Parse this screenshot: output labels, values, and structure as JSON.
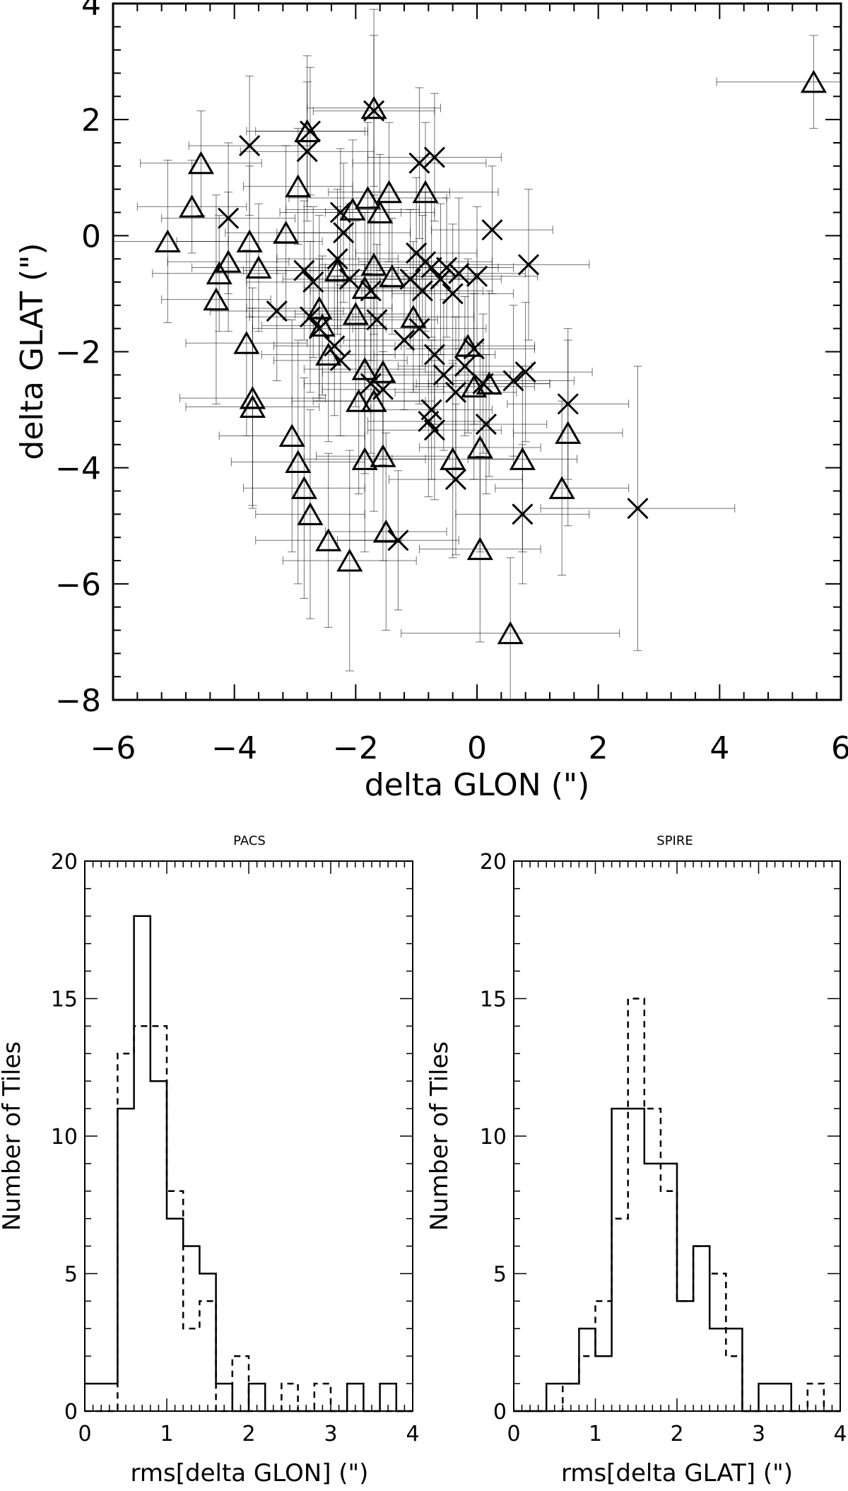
{
  "chart_data": [
    {
      "id": "scatter",
      "type": "scatter",
      "title": "",
      "xlabel": "delta GLON (\")",
      "ylabel": "delta GLAT (\")",
      "xlim": [
        -6,
        6
      ],
      "ylim": [
        -8,
        4
      ],
      "xticks": [
        "-6",
        "-4",
        "-2",
        "0",
        "2",
        "4",
        "6"
      ],
      "yticks": [
        "-8",
        "-6",
        "-4",
        "-2",
        "0",
        "2",
        "4"
      ],
      "series": [
        {
          "name": "triangle",
          "marker": "triangle",
          "points": [
            {
              "x": 5.55,
              "y": 2.65,
              "ex": 1.6,
              "ey": 0.8
            },
            {
              "x": -4.55,
              "y": 1.25,
              "ex": 1.0,
              "ey": 0.9
            },
            {
              "x": -4.7,
              "y": 0.5,
              "ex": 0.9,
              "ey": 0.8
            },
            {
              "x": -5.1,
              "y": -0.1,
              "ex": 1.0,
              "ey": 1.4
            },
            {
              "x": -4.25,
              "y": -0.65,
              "ex": 1.1,
              "ey": 1.0
            },
            {
              "x": -4.1,
              "y": -0.45,
              "ex": 1.0,
              "ey": 1.2
            },
            {
              "x": -4.3,
              "y": -1.1,
              "ex": 0.9,
              "ey": 1.8
            },
            {
              "x": -3.75,
              "y": -0.1,
              "ex": 1.2,
              "ey": 1.3
            },
            {
              "x": -3.6,
              "y": -0.55,
              "ex": 1.1,
              "ey": 1.1
            },
            {
              "x": -3.8,
              "y": -1.85,
              "ex": 1.0,
              "ey": 1.6
            },
            {
              "x": -3.7,
              "y": -2.8,
              "ex": 1.2,
              "ey": 1.9
            },
            {
              "x": -3.7,
              "y": -2.95,
              "ex": 1.1,
              "ey": 1.7
            },
            {
              "x": -3.15,
              "y": 0.05,
              "ex": 1.0,
              "ey": 1.5
            },
            {
              "x": -2.95,
              "y": 0.85,
              "ex": 0.9,
              "ey": 1.0
            },
            {
              "x": -3.05,
              "y": -3.45,
              "ex": 1.2,
              "ey": 2.0
            },
            {
              "x": -2.95,
              "y": -3.9,
              "ex": 1.1,
              "ey": 2.1
            },
            {
              "x": -2.85,
              "y": -4.35,
              "ex": 1.0,
              "ey": 1.9
            },
            {
              "x": -2.75,
              "y": -4.8,
              "ex": 0.9,
              "ey": 1.8
            },
            {
              "x": -2.45,
              "y": -5.25,
              "ex": 1.2,
              "ey": 1.5
            },
            {
              "x": -2.1,
              "y": -5.6,
              "ex": 1.1,
              "ey": 1.9
            },
            {
              "x": -2.8,
              "y": 1.8,
              "ex": 1.0,
              "ey": 1.3
            },
            {
              "x": -1.7,
              "y": 2.2,
              "ex": 1.1,
              "ey": 1.7
            },
            {
              "x": -1.8,
              "y": 0.65,
              "ex": 1.3,
              "ey": 1.3
            },
            {
              "x": -1.45,
              "y": 0.75,
              "ex": 1.0,
              "ey": 1.2
            },
            {
              "x": -1.6,
              "y": 0.4,
              "ex": 0.9,
              "ey": 1.0
            },
            {
              "x": -2.05,
              "y": 0.45,
              "ex": 1.1,
              "ey": 1.2
            },
            {
              "x": -0.85,
              "y": 0.75,
              "ex": 1.2,
              "ey": 1.2
            },
            {
              "x": -2.3,
              "y": -0.6,
              "ex": 1.0,
              "ey": 1.1
            },
            {
              "x": -1.7,
              "y": -0.5,
              "ex": 0.9,
              "ey": 1.2
            },
            {
              "x": -1.4,
              "y": -0.7,
              "ex": 1.1,
              "ey": 1.0
            },
            {
              "x": -1.85,
              "y": -0.9,
              "ex": 1.0,
              "ey": 1.3
            },
            {
              "x": -2.6,
              "y": -1.25,
              "ex": 1.2,
              "ey": 1.6
            },
            {
              "x": -2.55,
              "y": -1.55,
              "ex": 1.0,
              "ey": 1.2
            },
            {
              "x": -2.0,
              "y": -1.35,
              "ex": 1.0,
              "ey": 1.6
            },
            {
              "x": -1.05,
              "y": -1.4,
              "ex": 1.0,
              "ey": 1.3
            },
            {
              "x": -2.45,
              "y": -2.05,
              "ex": 1.1,
              "ey": 1.5
            },
            {
              "x": -1.85,
              "y": -2.3,
              "ex": 1.0,
              "ey": 1.8
            },
            {
              "x": -1.55,
              "y": -2.35,
              "ex": 1.0,
              "ey": 1.5
            },
            {
              "x": -1.95,
              "y": -2.85,
              "ex": 1.1,
              "ey": 1.6
            },
            {
              "x": -1.7,
              "y": -2.85,
              "ex": 1.0,
              "ey": 1.9
            },
            {
              "x": -1.85,
              "y": -3.85,
              "ex": 1.0,
              "ey": 1.6
            },
            {
              "x": -1.55,
              "y": -3.8,
              "ex": 1.1,
              "ey": 1.8
            },
            {
              "x": -1.5,
              "y": -5.1,
              "ex": 1.0,
              "ey": 1.7
            },
            {
              "x": -0.15,
              "y": -1.9,
              "ex": 1.1,
              "ey": 1.5
            },
            {
              "x": -0.05,
              "y": -2.6,
              "ex": 1.0,
              "ey": 1.6
            },
            {
              "x": 0.2,
              "y": -2.55,
              "ex": 1.0,
              "ey": 1.6
            },
            {
              "x": -0.4,
              "y": -3.85,
              "ex": 1.0,
              "ey": 1.7
            },
            {
              "x": 0.05,
              "y": -3.65,
              "ex": 1.0,
              "ey": 1.8
            },
            {
              "x": 0.75,
              "y": -3.85,
              "ex": 0.9,
              "ey": 1.6
            },
            {
              "x": 1.5,
              "y": -3.4,
              "ex": 0.9,
              "ey": 1.6
            },
            {
              "x": 1.4,
              "y": -4.35,
              "ex": 1.1,
              "ey": 1.5
            },
            {
              "x": 0.05,
              "y": -5.4,
              "ex": 1.0,
              "ey": 1.6
            },
            {
              "x": 0.55,
              "y": -6.85,
              "ex": 1.8,
              "ey": 1.3
            }
          ]
        },
        {
          "name": "cross",
          "marker": "cross",
          "points": [
            {
              "x": -3.75,
              "y": 1.55,
              "ex": 1.0,
              "ey": 1.2
            },
            {
              "x": -2.8,
              "y": 1.45,
              "ex": 1.1,
              "ey": 1.2
            },
            {
              "x": -2.75,
              "y": 1.8,
              "ex": 0.9,
              "ey": 1.1
            },
            {
              "x": -1.7,
              "y": 2.15,
              "ex": 1.0,
              "ey": 1.3
            },
            {
              "x": -4.1,
              "y": 0.3,
              "ex": 1.1,
              "ey": 1.3
            },
            {
              "x": -2.25,
              "y": 0.4,
              "ex": 1.0,
              "ey": 1.1
            },
            {
              "x": -2.2,
              "y": 0.05,
              "ex": 1.1,
              "ey": 1.2
            },
            {
              "x": -0.95,
              "y": 1.25,
              "ex": 1.1,
              "ey": 1.3
            },
            {
              "x": -0.7,
              "y": 1.35,
              "ex": 1.1,
              "ey": 1.1
            },
            {
              "x": 0.25,
              "y": 0.1,
              "ex": 1.0,
              "ey": 1.1
            },
            {
              "x": 0.85,
              "y": -0.5,
              "ex": 1.0,
              "ey": 1.3
            },
            {
              "x": -3.3,
              "y": -1.3,
              "ex": 1.1,
              "ey": 1.2
            },
            {
              "x": -2.85,
              "y": -0.6,
              "ex": 1.0,
              "ey": 1.2
            },
            {
              "x": -2.7,
              "y": -0.8,
              "ex": 1.1,
              "ey": 1.3
            },
            {
              "x": -2.75,
              "y": -1.4,
              "ex": 1.0,
              "ey": 1.3
            },
            {
              "x": -2.6,
              "y": -1.6,
              "ex": 1.1,
              "ey": 1.2
            },
            {
              "x": -2.3,
              "y": -0.4,
              "ex": 1.0,
              "ey": 1.2
            },
            {
              "x": -2.1,
              "y": -0.75,
              "ex": 1.1,
              "ey": 1.3
            },
            {
              "x": -2.35,
              "y": -1.9,
              "ex": 1.0,
              "ey": 1.2
            },
            {
              "x": -2.25,
              "y": -2.15,
              "ex": 1.1,
              "ey": 1.3
            },
            {
              "x": -1.75,
              "y": -0.95,
              "ex": 1.0,
              "ey": 1.2
            },
            {
              "x": -1.65,
              "y": -1.45,
              "ex": 1.0,
              "ey": 1.3
            },
            {
              "x": -1.75,
              "y": -2.55,
              "ex": 1.1,
              "ey": 1.2
            },
            {
              "x": -1.55,
              "y": -2.65,
              "ex": 1.0,
              "ey": 1.3
            },
            {
              "x": -1.1,
              "y": -0.75,
              "ex": 1.1,
              "ey": 1.2
            },
            {
              "x": -1.0,
              "y": -0.3,
              "ex": 1.0,
              "ey": 1.3
            },
            {
              "x": -0.85,
              "y": -0.45,
              "ex": 1.1,
              "ey": 1.2
            },
            {
              "x": -0.9,
              "y": -0.95,
              "ex": 1.0,
              "ey": 1.3
            },
            {
              "x": -0.75,
              "y": -0.55,
              "ex": 1.1,
              "ey": 1.2
            },
            {
              "x": -0.6,
              "y": -0.75,
              "ex": 1.0,
              "ey": 1.3
            },
            {
              "x": -0.5,
              "y": -0.55,
              "ex": 1.1,
              "ey": 1.2
            },
            {
              "x": -0.4,
              "y": -1.0,
              "ex": 1.0,
              "ey": 1.2
            },
            {
              "x": -0.3,
              "y": -0.65,
              "ex": 1.1,
              "ey": 1.3
            },
            {
              "x": -1.2,
              "y": -1.8,
              "ex": 1.0,
              "ey": 1.2
            },
            {
              "x": -0.95,
              "y": -1.6,
              "ex": 1.1,
              "ey": 1.3
            },
            {
              "x": -0.7,
              "y": -2.05,
              "ex": 1.0,
              "ey": 1.2
            },
            {
              "x": -0.55,
              "y": -2.4,
              "ex": 1.1,
              "ey": 1.3
            },
            {
              "x": -0.75,
              "y": -3.0,
              "ex": 1.0,
              "ey": 1.2
            },
            {
              "x": -0.8,
              "y": -3.2,
              "ex": 1.0,
              "ey": 1.3
            },
            {
              "x": -0.7,
              "y": -3.35,
              "ex": 1.1,
              "ey": 1.2
            },
            {
              "x": -0.35,
              "y": -2.7,
              "ex": 1.0,
              "ey": 1.3
            },
            {
              "x": -0.2,
              "y": -2.25,
              "ex": 1.1,
              "ey": 1.2
            },
            {
              "x": -0.05,
              "y": -1.95,
              "ex": 1.0,
              "ey": 1.3
            },
            {
              "x": 0.1,
              "y": -2.55,
              "ex": 1.1,
              "ey": 1.2
            },
            {
              "x": 0.15,
              "y": -3.25,
              "ex": 1.0,
              "ey": 1.2
            },
            {
              "x": -0.35,
              "y": -4.2,
              "ex": 1.1,
              "ey": 1.3
            },
            {
              "x": 0.0,
              "y": -0.7,
              "ex": 1.0,
              "ey": 1.2
            },
            {
              "x": 0.6,
              "y": -2.5,
              "ex": 1.0,
              "ey": 1.3
            },
            {
              "x": 0.8,
              "y": -2.35,
              "ex": 1.1,
              "ey": 1.2
            },
            {
              "x": 1.5,
              "y": -2.9,
              "ex": 1.0,
              "ey": 1.3
            },
            {
              "x": 0.75,
              "y": -4.8,
              "ex": 1.1,
              "ey": 1.2
            },
            {
              "x": 2.65,
              "y": -4.7,
              "ex": 1.6,
              "ey": 2.45
            },
            {
              "x": -1.3,
              "y": -5.25,
              "ex": 1.0,
              "ey": 1.2
            }
          ]
        }
      ]
    },
    {
      "id": "hist-pacs",
      "type": "histogram",
      "title": "PACS",
      "xlabel": "rms[delta GLON] (\")",
      "ylabel": "Number of Tiles",
      "xlim": [
        0,
        4
      ],
      "ylim": [
        0,
        20
      ],
      "xticks": [
        "0",
        "1",
        "2",
        "3",
        "4"
      ],
      "yticks": [
        "0",
        "5",
        "10",
        "15",
        "20"
      ],
      "bin_edges": [
        0.0,
        0.2,
        0.4,
        0.6,
        0.8,
        1.0,
        1.2,
        1.4,
        1.6,
        1.8,
        2.0,
        2.2,
        2.4,
        2.6,
        2.8,
        3.0,
        3.2,
        3.4,
        3.6,
        3.8,
        4.0
      ],
      "series": [
        {
          "name": "solid",
          "style": "solid",
          "values": [
            1,
            1,
            11,
            18,
            12,
            7,
            6,
            5,
            1,
            0,
            1,
            0,
            0,
            0,
            0,
            0,
            1,
            0,
            1,
            0
          ]
        },
        {
          "name": "dashed",
          "style": "dashed",
          "values": [
            0,
            0,
            13,
            14,
            14,
            8,
            3,
            4,
            0,
            2,
            0,
            0,
            1,
            0,
            1,
            0,
            0,
            0,
            0,
            0
          ]
        }
      ]
    },
    {
      "id": "hist-spire",
      "type": "histogram",
      "title": "SPIRE",
      "xlabel": "rms[delta GLAT] (\")",
      "ylabel": "Number of Tiles",
      "xlim": [
        0,
        4
      ],
      "ylim": [
        0,
        20
      ],
      "xticks": [
        "0",
        "1",
        "2",
        "3",
        "4"
      ],
      "yticks": [
        "0",
        "5",
        "10",
        "15",
        "20"
      ],
      "bin_edges": [
        0.0,
        0.2,
        0.4,
        0.6,
        0.8,
        1.0,
        1.2,
        1.4,
        1.6,
        1.8,
        2.0,
        2.2,
        2.4,
        2.6,
        2.8,
        3.0,
        3.2,
        3.4,
        3.6,
        3.8,
        4.0
      ],
      "series": [
        {
          "name": "solid",
          "style": "solid",
          "values": [
            0,
            0,
            1,
            1,
            3,
            2,
            11,
            11,
            9,
            9,
            4,
            6,
            3,
            3,
            0,
            1,
            1,
            0,
            0,
            0
          ]
        },
        {
          "name": "dashed",
          "style": "dashed",
          "values": [
            0,
            0,
            0,
            1,
            2,
            4,
            7,
            15,
            11,
            8,
            4,
            6,
            5,
            2,
            0,
            0,
            0,
            0,
            1,
            0
          ]
        }
      ]
    }
  ]
}
